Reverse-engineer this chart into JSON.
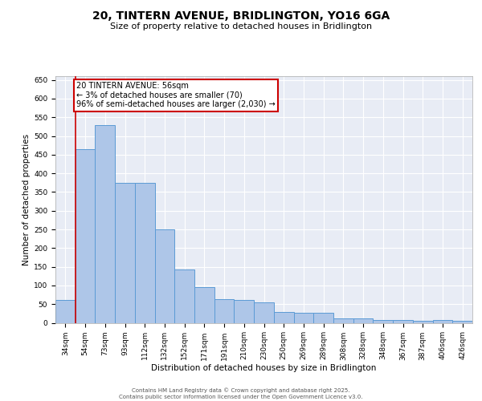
{
  "title_line1": "20, TINTERN AVENUE, BRIDLINGTON, YO16 6GA",
  "title_line2": "Size of property relative to detached houses in Bridlington",
  "xlabel": "Distribution of detached houses by size in Bridlington",
  "ylabel": "Number of detached properties",
  "footer_line1": "Contains HM Land Registry data © Crown copyright and database right 2025.",
  "footer_line2": "Contains public sector information licensed under the Open Government Licence v3.0.",
  "annotation_line1": "20 TINTERN AVENUE: 56sqm",
  "annotation_line2": "← 3% of detached houses are smaller (70)",
  "annotation_line3": "96% of semi-detached houses are larger (2,030) →",
  "categories": [
    "34sqm",
    "54sqm",
    "73sqm",
    "93sqm",
    "112sqm",
    "132sqm",
    "152sqm",
    "171sqm",
    "191sqm",
    "210sqm",
    "230sqm",
    "250sqm",
    "269sqm",
    "289sqm",
    "308sqm",
    "328sqm",
    "348sqm",
    "367sqm",
    "387sqm",
    "406sqm",
    "426sqm"
  ],
  "values": [
    62,
    465,
    530,
    375,
    375,
    250,
    143,
    95,
    63,
    62,
    55,
    28,
    27,
    27,
    11,
    11,
    8,
    7,
    5,
    7,
    5
  ],
  "bar_color": "#aec6e8",
  "bar_edge_color": "#5b9bd5",
  "background_color": "#e8ecf5",
  "grid_color": "#ffffff",
  "vline_color": "#cc0000",
  "vline_index": 1,
  "ylim": [
    0,
    660
  ],
  "yticks": [
    0,
    50,
    100,
    150,
    200,
    250,
    300,
    350,
    400,
    450,
    500,
    550,
    600,
    650
  ],
  "annotation_box_color": "#cc0000",
  "title_fontsize": 10,
  "subtitle_fontsize": 8,
  "tick_fontsize": 6.5,
  "ylabel_fontsize": 7.5,
  "xlabel_fontsize": 7.5,
  "footer_fontsize": 5,
  "annotation_fontsize": 7
}
